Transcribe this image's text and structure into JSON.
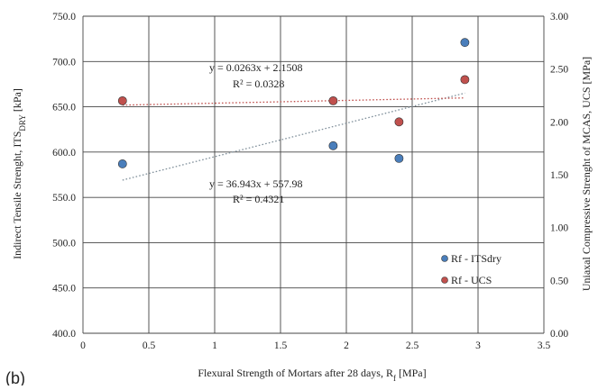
{
  "panel_label": "(b)",
  "chart_data": {
    "type": "scatter",
    "xlabel": "Flexural Strength of Mortars after 28 days, R",
    "xlabel_sub": "f",
    "xlabel_unit": " [MPa]",
    "ylabel": "Indirect Tensile Strenght, ITS",
    "ylabel_sub": "DRY",
    "ylabel_unit": " [kPa]",
    "y2label": "Uniaxal Compressive Strenght of MCAS, UCS [MPa]",
    "xlim": [
      0,
      3.5
    ],
    "ylim": [
      400,
      750
    ],
    "y2lim": [
      0,
      3
    ],
    "xticks": [
      0,
      0.5,
      1,
      1.5,
      2,
      2.5,
      3,
      3.5
    ],
    "xtick_labels": [
      "0",
      "0.5",
      "1",
      "1.5",
      "2",
      "2.5",
      "3",
      "3.5"
    ],
    "yticks": [
      400,
      450,
      500,
      550,
      600,
      650,
      700,
      750
    ],
    "ytick_labels": [
      "400.0",
      "450.0",
      "500.0",
      "550.0",
      "600.0",
      "650.0",
      "700.0",
      "750.0"
    ],
    "y2ticks": [
      0,
      0.5,
      1,
      1.5,
      2,
      2.5,
      3
    ],
    "y2tick_labels": [
      "0.00",
      "0.50",
      "1.00",
      "1.50",
      "2.00",
      "2.50",
      "3.00"
    ],
    "grid": true,
    "legend_position": "bottom-right",
    "series": [
      {
        "name": "Rf - ITSdry",
        "axis": "left",
        "color": "#4a7ebb",
        "x": [
          0.3,
          1.9,
          2.4,
          2.9
        ],
        "y": [
          587,
          607,
          593,
          721
        ],
        "trendline": {
          "slope": 36.943,
          "intercept": 557.98,
          "x_range": [
            0.3,
            2.9
          ],
          "color": "#7f8f9a",
          "equation": "y = 36.943x + 557.98",
          "r2": "R² = 0.4321"
        }
      },
      {
        "name": "Rf - UCS",
        "axis": "right",
        "color": "#c0504d",
        "x": [
          0.3,
          1.9,
          2.4,
          2.9
        ],
        "y": [
          2.2,
          2.2,
          2.0,
          2.4
        ],
        "trendline": {
          "slope": 0.0263,
          "intercept": 2.1508,
          "x_range": [
            0.3,
            2.9
          ],
          "color": "#c0504d",
          "equation": "y = 0.0263x + 2.1508",
          "r2": "R² = 0.0328"
        }
      }
    ]
  }
}
